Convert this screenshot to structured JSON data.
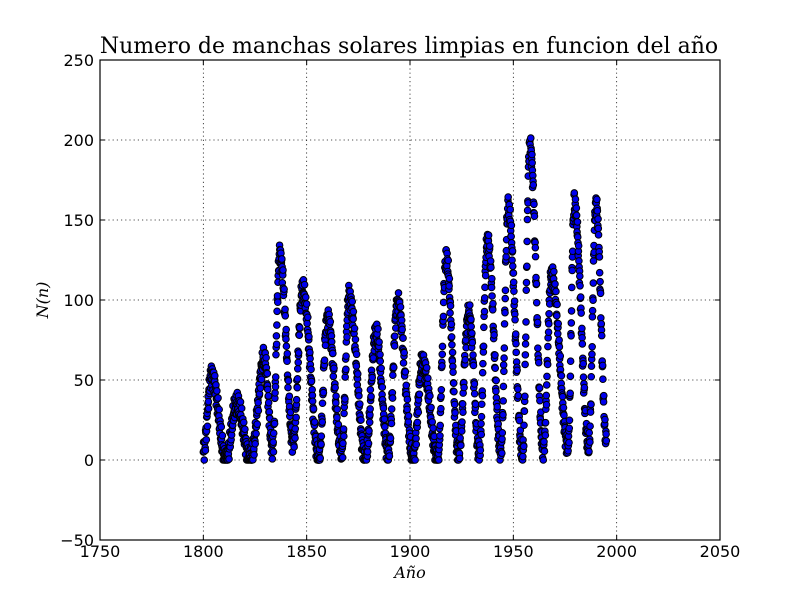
{
  "chart_data": {
    "type": "scatter",
    "title": "Numero de manchas solares limpias en funcion del año",
    "xlabel": "Año",
    "ylabel": "N(n)",
    "xlim": [
      1750,
      2050
    ],
    "ylim": [
      -50,
      250
    ],
    "x_ticks": [
      "1750",
      "1800",
      "1850",
      "1900",
      "1950",
      "2000",
      "2050"
    ],
    "y_ticks": [
      "−50",
      "0",
      "50",
      "100",
      "150",
      "200",
      "250"
    ],
    "grid": true,
    "marker_color": "#0000ee",
    "marker_edge_color": "#000000",
    "cycle_peaks": [
      [
        1800.0,
        5
      ],
      [
        1804.0,
        53
      ],
      [
        1811.0,
        0
      ],
      [
        1816.0,
        35
      ],
      [
        1823.0,
        1
      ],
      [
        1829.5,
        64
      ],
      [
        1833.5,
        8
      ],
      [
        1837.0,
        128
      ],
      [
        1843.5,
        11
      ],
      [
        1848.0,
        106
      ],
      [
        1856.0,
        1
      ],
      [
        1860.0,
        89
      ],
      [
        1867.0,
        5
      ],
      [
        1870.5,
        102
      ],
      [
        1878.5,
        1
      ],
      [
        1883.5,
        79
      ],
      [
        1889.5,
        4
      ],
      [
        1894.0,
        99
      ],
      [
        1901.5,
        1
      ],
      [
        1906.0,
        61
      ],
      [
        1913.5,
        1
      ],
      [
        1917.5,
        125
      ],
      [
        1923.5,
        4
      ],
      [
        1928.5,
        92
      ],
      [
        1933.5,
        4
      ],
      [
        1937.5,
        137
      ],
      [
        1944.0,
        5
      ],
      [
        1947.5,
        157
      ],
      [
        1954.5,
        3
      ],
      [
        1958.0,
        197
      ],
      [
        1964.5,
        6
      ],
      [
        1968.5,
        116
      ],
      [
        1976.5,
        9
      ],
      [
        1979.5,
        159
      ],
      [
        1986.5,
        8
      ],
      [
        1990.0,
        160
      ],
      [
        1995.0,
        12
      ]
    ]
  }
}
